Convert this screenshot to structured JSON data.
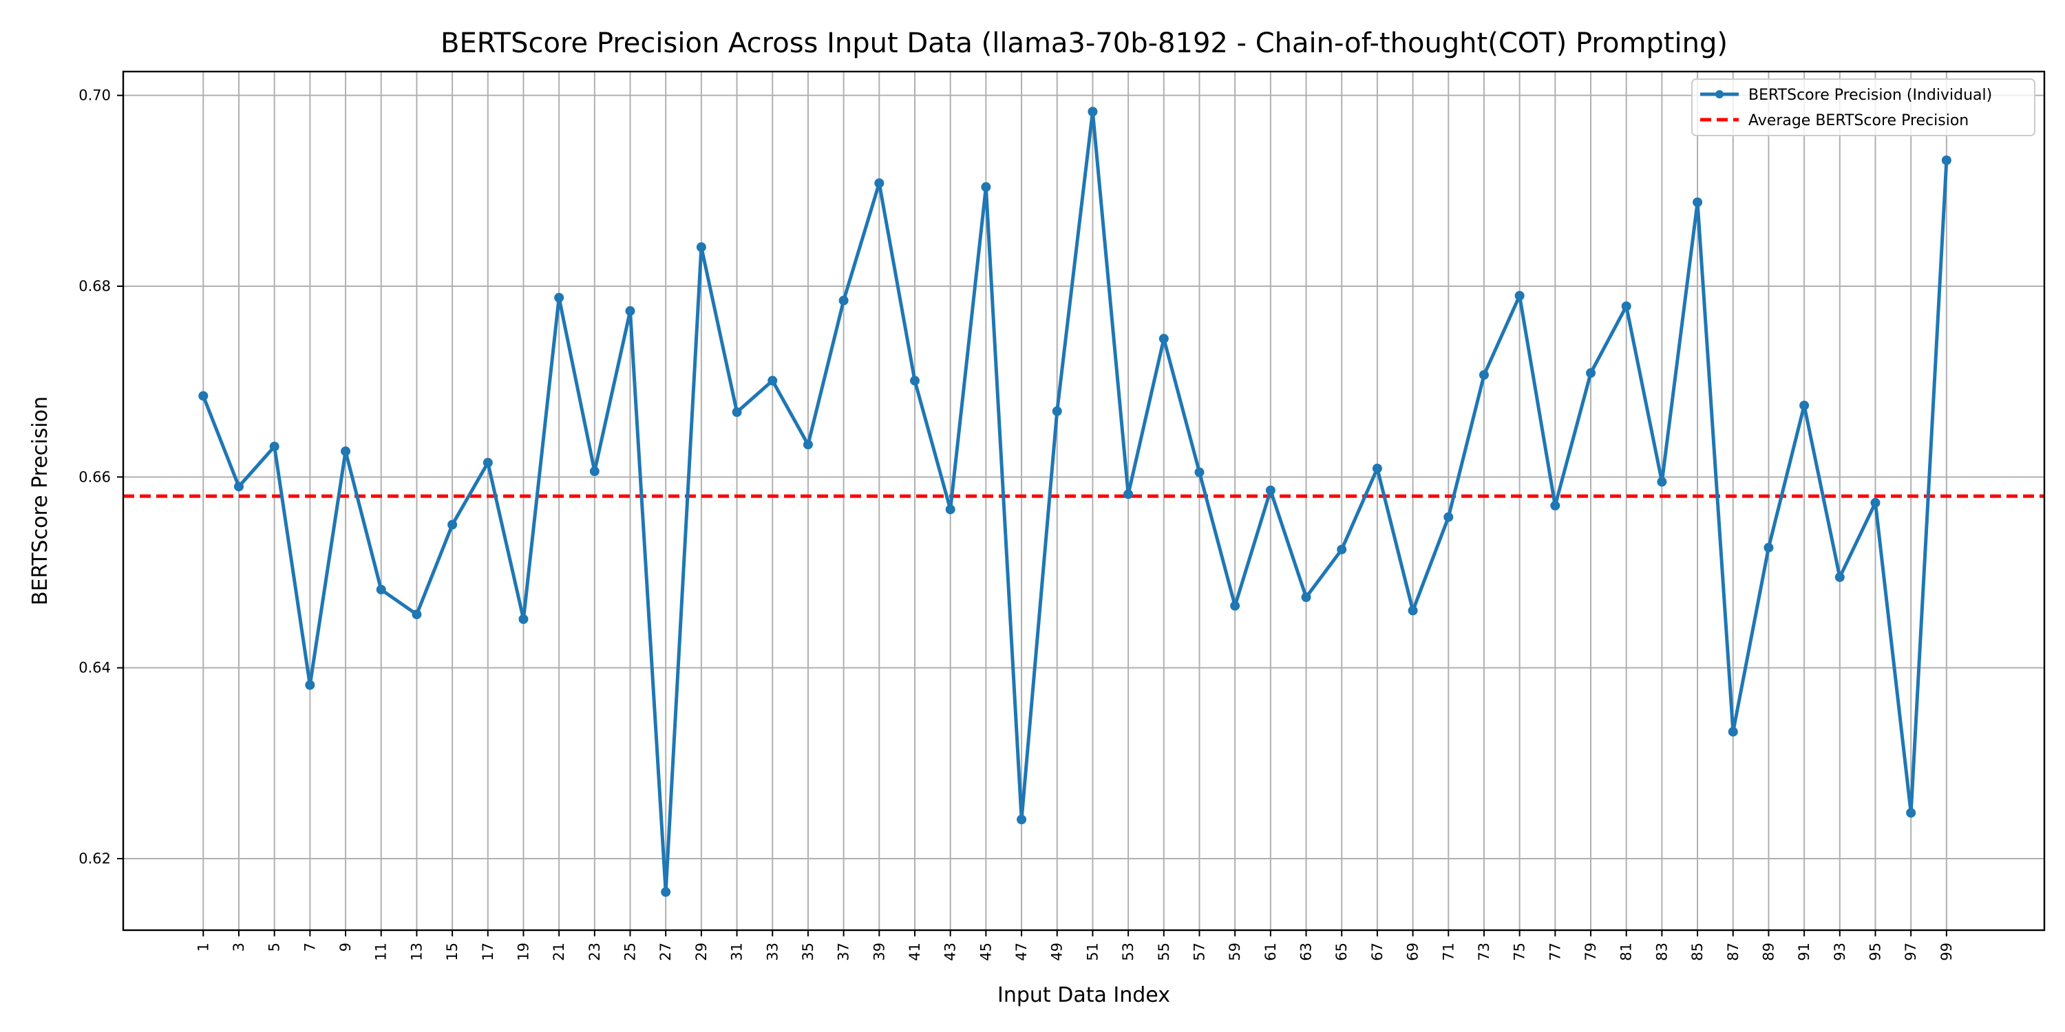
{
  "chart_data": {
    "type": "line",
    "title": "BERTScore Precision Across Input Data (llama3-70b-8192 - Chain-of-thought(COT) Prompting)",
    "xlabel": "Input Data Index",
    "ylabel": "BERTScore Precision",
    "xlim": [
      -3.5,
      104.5
    ],
    "ylim": [
      0.6125,
      0.7025
    ],
    "x_ticks": [
      1,
      3,
      5,
      7,
      9,
      11,
      13,
      15,
      17,
      19,
      21,
      23,
      25,
      27,
      29,
      31,
      33,
      35,
      37,
      39,
      41,
      43,
      45,
      47,
      49,
      51,
      53,
      55,
      57,
      59,
      61,
      63,
      65,
      67,
      69,
      71,
      73,
      75,
      77,
      79,
      81,
      83,
      85,
      87,
      89,
      91,
      93,
      95,
      97,
      99
    ],
    "y_ticks": [
      0.62,
      0.64,
      0.66,
      0.68,
      0.7
    ],
    "y_tick_labels": [
      "0.62",
      "0.64",
      "0.66",
      "0.68",
      "0.70"
    ],
    "grid": true,
    "legend_position": "top-right",
    "series": [
      {
        "name": "BERTScore Precision (Individual)",
        "color": "#1f77b4",
        "x": [
          1,
          3,
          5,
          7,
          9,
          11,
          13,
          15,
          17,
          19,
          21,
          23,
          25,
          27,
          29,
          31,
          33,
          35,
          37,
          39,
          41,
          43,
          45,
          47,
          49,
          51,
          53,
          55,
          57,
          59,
          61,
          63,
          65,
          67,
          69,
          71,
          73,
          75,
          77,
          79,
          81,
          83,
          85,
          87,
          89,
          91,
          93,
          95,
          97,
          99
        ],
        "values": [
          0.6685,
          0.659,
          0.6632,
          0.6382,
          0.6627,
          0.6482,
          0.6456,
          0.655,
          0.6615,
          0.6451,
          0.6788,
          0.6606,
          0.6774,
          0.6165,
          0.6841,
          0.6668,
          0.6701,
          0.6634,
          0.6785,
          0.6908,
          0.6701,
          0.6566,
          0.6904,
          0.6241,
          0.6669,
          0.6983,
          0.6582,
          0.6745,
          0.6605,
          0.6465,
          0.6586,
          0.6474,
          0.6524,
          0.6609,
          0.646,
          0.6558,
          0.6707,
          0.679,
          0.657,
          0.6709,
          0.6779,
          0.6595,
          0.6888,
          0.6333,
          0.6526,
          0.6675,
          0.6495,
          0.6573,
          0.6248,
          0.6932
        ]
      },
      {
        "name": "Average BERTScore Precision",
        "color": "#ff0000",
        "constant": 0.658
      }
    ]
  }
}
